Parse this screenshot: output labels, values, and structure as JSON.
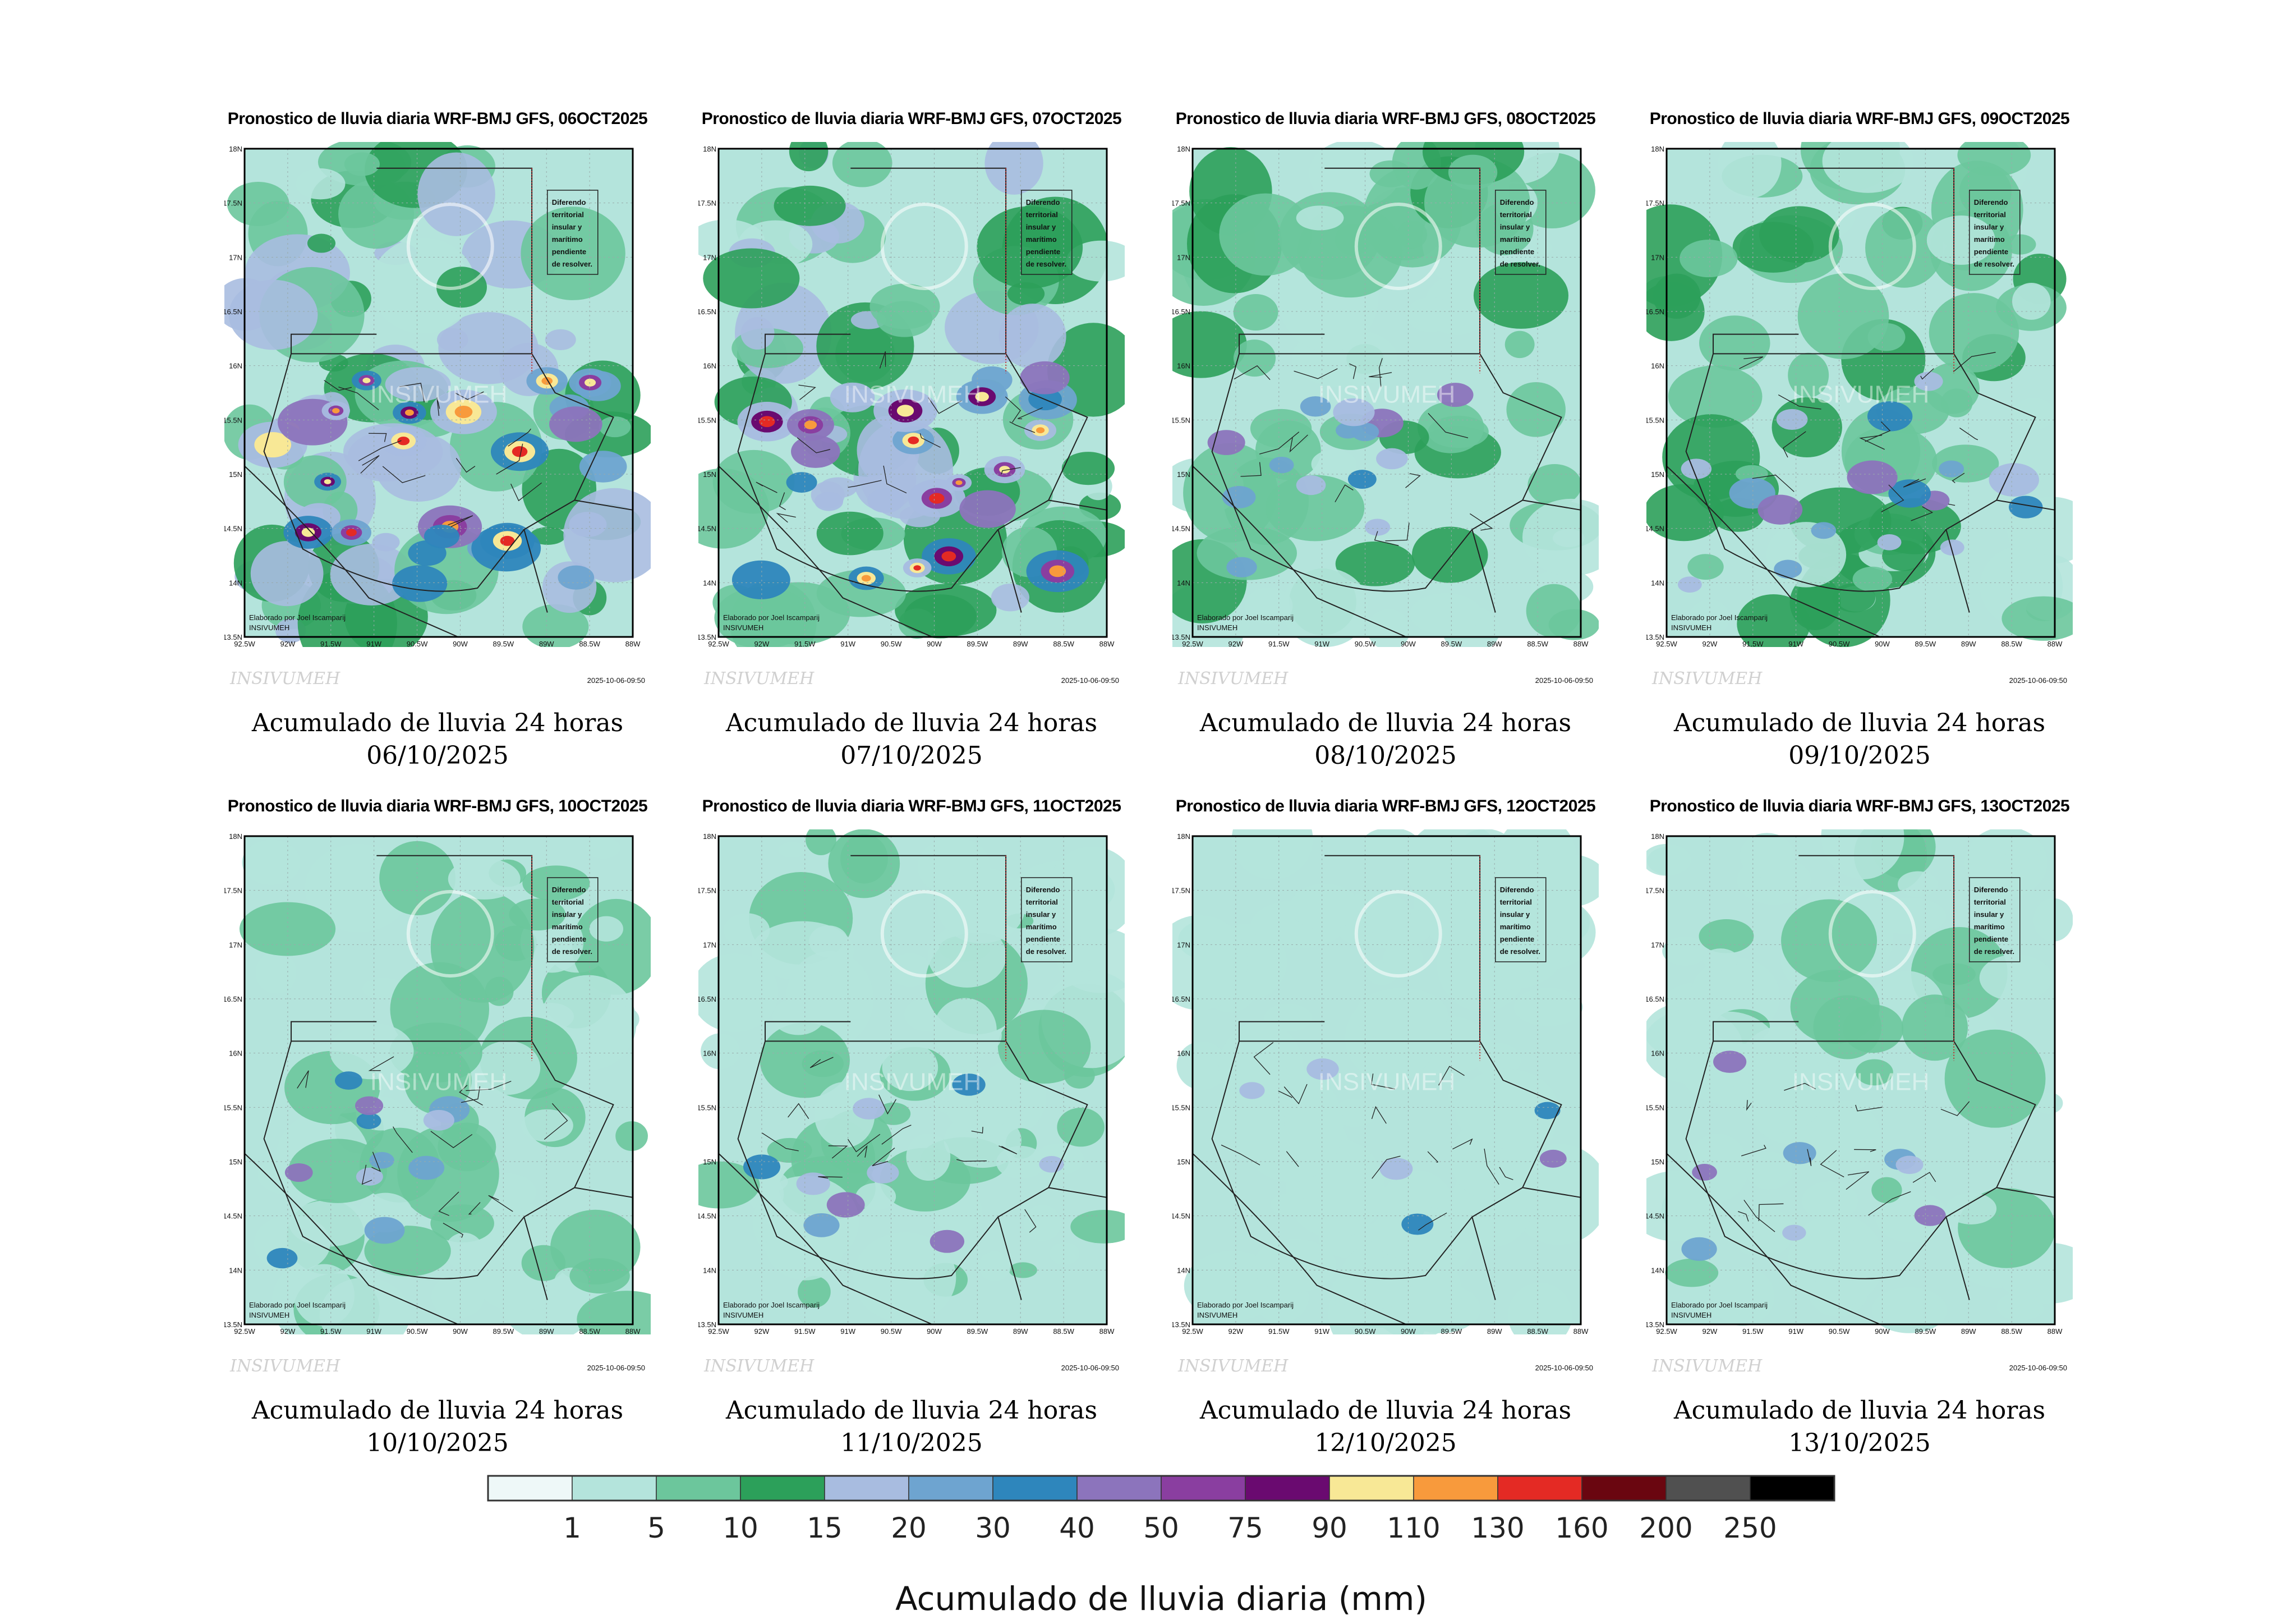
{
  "common": {
    "caption_line1": "Acumulado de lluvia 24 horas",
    "note_lines": [
      "Diferendo",
      "territorial",
      "insular y",
      "marítimo",
      "pendiente",
      "de resolver."
    ],
    "credit_line1": "Elaborado por Joel Iscamparij",
    "credit_line2": "INSIVUMEH",
    "watermark": "INSIVUMEH",
    "footer_logo": "INSIVUMEH",
    "timestamp": "2025-10-06-09:50",
    "lat_ticks": [
      "18N",
      "17.5N",
      "17N",
      "16.5N",
      "16N",
      "15.5N",
      "15N",
      "14.5N",
      "14N",
      "13.5N"
    ],
    "lon_ticks": [
      "92.5W",
      "92W",
      "91.5W",
      "91W",
      "90.5W",
      "90W",
      "89.5W",
      "89W",
      "88.5W",
      "88W"
    ]
  },
  "panels": [
    {
      "title": "Pronostico de lluvia diaria WRF-BMJ GFS,  06OCT2025",
      "date": "06/10/2025",
      "intensity": 0.95
    },
    {
      "title": "Pronostico de lluvia diaria WRF-BMJ GFS,  07OCT2025",
      "date": "07/10/2025",
      "intensity": 0.8
    },
    {
      "title": "Pronostico de lluvia diaria WRF-BMJ GFS,  08OCT2025",
      "date": "08/10/2025",
      "intensity": 0.45
    },
    {
      "title": "Pronostico de lluvia diaria WRF-BMJ GFS,  09OCT2025",
      "date": "09/10/2025",
      "intensity": 0.55
    },
    {
      "title": "Pronostico de lluvia diaria WRF-BMJ GFS,  10OCT2025",
      "date": "10/10/2025",
      "intensity": 0.35
    },
    {
      "title": "Pronostico de lluvia diaria WRF-BMJ GFS,  11OCT2025",
      "date": "11/10/2025",
      "intensity": 0.3
    },
    {
      "title": "Pronostico de lluvia diaria WRF-BMJ GFS,  12OCT2025",
      "date": "12/10/2025",
      "intensity": 0.2
    },
    {
      "title": "Pronostico de lluvia diaria WRF-BMJ GFS,  13OCT2025",
      "date": "13/10/2025",
      "intensity": 0.25
    }
  ],
  "colorbar": {
    "title": "Acumulado de lluvia diaria (mm)",
    "colors": [
      "#eef8f8",
      "#b4e4dc",
      "#6cc69c",
      "#2ca05a",
      "#a8bce0",
      "#6ea4d0",
      "#2e86bc",
      "#8c74bc",
      "#8a3ea0",
      "#6a0a70",
      "#f8e896",
      "#f89a3c",
      "#e42a24",
      "#6a0610",
      "#505050",
      "#000000"
    ],
    "labels": [
      "1",
      "5",
      "10",
      "15",
      "20",
      "30",
      "40",
      "50",
      "75",
      "90",
      "110",
      "130",
      "160",
      "200",
      "250"
    ]
  }
}
